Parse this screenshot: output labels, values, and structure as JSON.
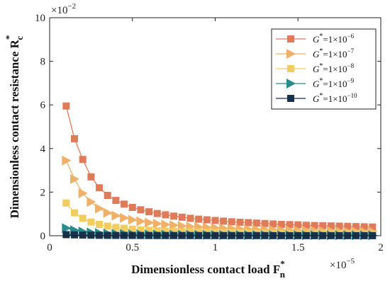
{
  "chart_data": {
    "type": "line",
    "xlabel": "Dimensionless contact load F",
    "xlabel_sub": "n",
    "xlabel_sup": "*",
    "ylabel": "Dimensionless contact resistance R",
    "ylabel_sub": "c",
    "ylabel_sup": "*",
    "x_multiplier_base": "×10",
    "x_multiplier_exp": "−5",
    "y_multiplier_base": "×10",
    "y_multiplier_exp": "−2",
    "xlim": [
      0,
      2
    ],
    "ylim": [
      0,
      10
    ],
    "xticks": [
      0,
      0.5,
      1,
      1.5,
      2
    ],
    "xtick_labels": [
      "0",
      "0.5",
      "1",
      "1.5",
      "2"
    ],
    "yticks": [
      0,
      2,
      4,
      6,
      8,
      10
    ],
    "ytick_labels": [
      "0",
      "2",
      "4",
      "6",
      "8",
      "10"
    ],
    "grid": false,
    "legend_position": "top-right",
    "x": [
      0.1,
      0.15,
      0.2,
      0.25,
      0.3,
      0.35,
      0.4,
      0.45,
      0.5,
      0.55,
      0.6,
      0.65,
      0.7,
      0.75,
      0.8,
      0.85,
      0.9,
      0.95,
      1.0,
      1.05,
      1.1,
      1.15,
      1.2,
      1.25,
      1.3,
      1.35,
      1.4,
      1.45,
      1.5,
      1.55,
      1.6,
      1.65,
      1.7,
      1.75,
      1.8,
      1.85,
      1.9,
      1.95
    ],
    "series": [
      {
        "legend_prefix": "G",
        "legend_sup": "*",
        "legend_mid": "=1×10",
        "legend_exp": "−6",
        "color": "#e07b5a",
        "marker": "square",
        "values": [
          5.95,
          4.45,
          3.5,
          2.7,
          2.2,
          1.85,
          1.62,
          1.45,
          1.3,
          1.19,
          1.1,
          1.02,
          0.96,
          0.9,
          0.85,
          0.8,
          0.76,
          0.73,
          0.7,
          0.67,
          0.64,
          0.62,
          0.6,
          0.58,
          0.56,
          0.54,
          0.52,
          0.51,
          0.5,
          0.48,
          0.47,
          0.46,
          0.45,
          0.44,
          0.43,
          0.42,
          0.41,
          0.4
        ]
      },
      {
        "legend_prefix": "G",
        "legend_sup": "*",
        "legend_mid": "=1×10",
        "legend_exp": "−7",
        "color": "#f0b068",
        "marker": "triangle-right",
        "values": [
          3.45,
          2.6,
          1.95,
          1.55,
          1.25,
          1.05,
          0.92,
          0.82,
          0.73,
          0.66,
          0.6,
          0.55,
          0.51,
          0.48,
          0.45,
          0.42,
          0.4,
          0.38,
          0.36,
          0.34,
          0.33,
          0.31,
          0.3,
          0.29,
          0.28,
          0.27,
          0.26,
          0.25,
          0.24,
          0.24,
          0.23,
          0.22,
          0.22,
          0.21,
          0.2,
          0.2,
          0.19,
          0.19
        ]
      },
      {
        "legend_prefix": "G",
        "legend_sup": "*",
        "legend_mid": "=1×10",
        "legend_exp": "−8",
        "color": "#f2cc5e",
        "marker": "square",
        "values": [
          1.5,
          1.05,
          0.8,
          0.63,
          0.52,
          0.44,
          0.38,
          0.34,
          0.3,
          0.27,
          0.25,
          0.23,
          0.21,
          0.2,
          0.19,
          0.18,
          0.17,
          0.16,
          0.15,
          0.14,
          0.14,
          0.13,
          0.13,
          0.12,
          0.12,
          0.11,
          0.11,
          0.1,
          0.1,
          0.1,
          0.09,
          0.09,
          0.09,
          0.09,
          0.08,
          0.08,
          0.08,
          0.08
        ]
      },
      {
        "legend_prefix": "G",
        "legend_sup": "*",
        "legend_mid": "=1×10",
        "legend_exp": "−9",
        "color": "#2a8c8c",
        "marker": "triangle-right",
        "values": [
          0.35,
          0.25,
          0.19,
          0.15,
          0.12,
          0.1,
          0.09,
          0.08,
          0.07,
          0.065,
          0.06,
          0.055,
          0.05,
          0.048,
          0.045,
          0.043,
          0.04,
          0.038,
          0.036,
          0.034,
          0.033,
          0.031,
          0.03,
          0.029,
          0.028,
          0.027,
          0.026,
          0.025,
          0.024,
          0.024,
          0.023,
          0.022,
          0.022,
          0.021,
          0.02,
          0.02,
          0.019,
          0.019
        ]
      },
      {
        "legend_prefix": "G",
        "legend_sup": "*",
        "legend_mid": "=1×10",
        "legend_exp": "−10",
        "color": "#15324f",
        "marker": "square",
        "values": [
          0.05,
          0.04,
          0.03,
          0.025,
          0.02,
          0.018,
          0.016,
          0.014,
          0.013,
          0.012,
          0.011,
          0.01,
          0.01,
          0.009,
          0.009,
          0.008,
          0.008,
          0.008,
          0.007,
          0.007,
          0.007,
          0.006,
          0.006,
          0.006,
          0.006,
          0.005,
          0.005,
          0.005,
          0.005,
          0.005,
          0.005,
          0.004,
          0.004,
          0.004,
          0.004,
          0.004,
          0.004,
          0.004
        ]
      }
    ]
  }
}
